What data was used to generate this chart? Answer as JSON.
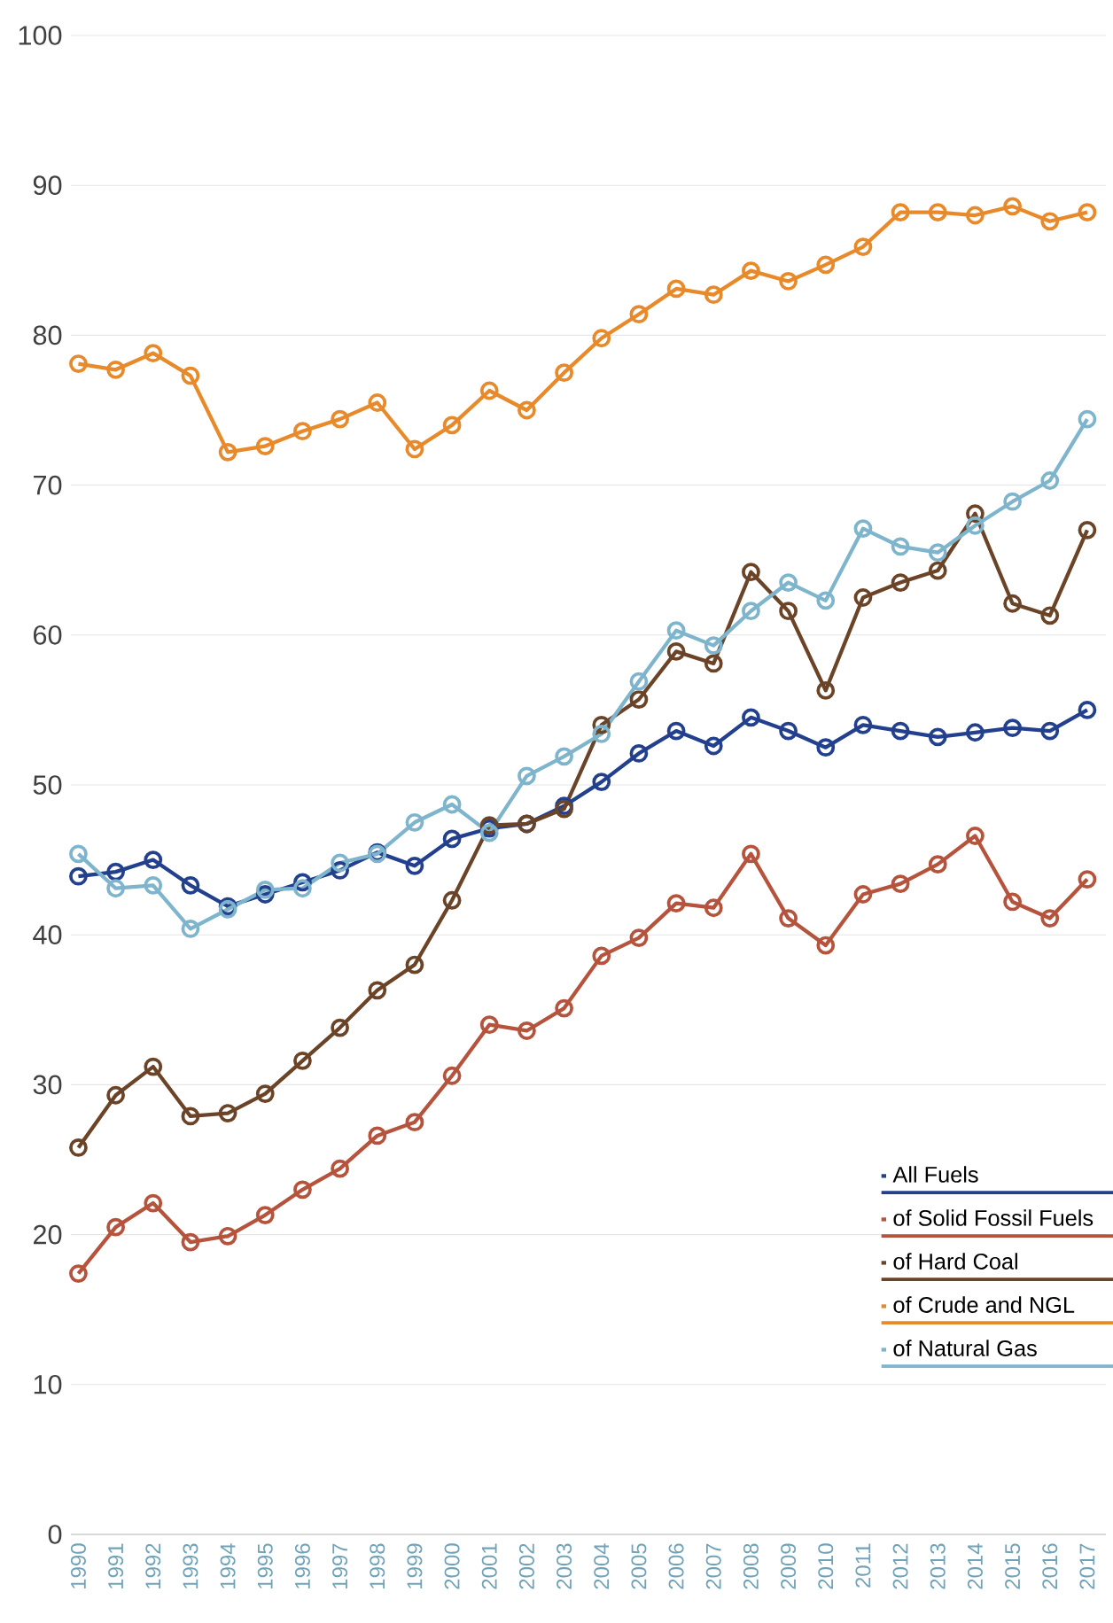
{
  "chart_data": {
    "type": "line",
    "x": [
      1990,
      1991,
      1992,
      1993,
      1994,
      1995,
      1996,
      1997,
      1998,
      1999,
      2000,
      2001,
      2002,
      2003,
      2004,
      2005,
      2006,
      2007,
      2008,
      2009,
      2010,
      2011,
      2012,
      2013,
      2014,
      2015,
      2016,
      2017
    ],
    "series": [
      {
        "name": "All Fuels",
        "color": "#23408e",
        "values": [
          43.9,
          44.2,
          45.0,
          43.3,
          41.9,
          42.7,
          43.5,
          44.3,
          45.5,
          44.6,
          46.4,
          47.1,
          47.4,
          48.6,
          50.2,
          52.1,
          53.6,
          52.6,
          54.5,
          53.6,
          52.5,
          54.0,
          53.6,
          53.2,
          53.5,
          53.8,
          53.6,
          55.0
        ]
      },
      {
        "name": "of Solid Fossil Fuels",
        "color": "#b5533c",
        "values": [
          17.4,
          20.5,
          22.1,
          19.5,
          19.9,
          21.3,
          23.0,
          24.4,
          26.6,
          27.5,
          30.6,
          34.0,
          33.6,
          35.1,
          38.6,
          39.8,
          42.1,
          41.8,
          45.4,
          41.1,
          39.3,
          42.7,
          43.4,
          44.7,
          46.6,
          42.2,
          41.1,
          43.7
        ]
      },
      {
        "name": "of Hard Coal",
        "color": "#6b4428",
        "values": [
          25.8,
          29.3,
          31.2,
          27.9,
          28.1,
          29.4,
          31.6,
          33.8,
          36.3,
          38.0,
          42.3,
          47.3,
          47.4,
          48.4,
          54.0,
          55.7,
          58.9,
          58.1,
          64.2,
          61.6,
          56.3,
          62.5,
          63.5,
          64.3,
          68.1,
          62.1,
          61.3,
          67.0
        ]
      },
      {
        "name": "of Crude and NGL",
        "color": "#e8892a",
        "values": [
          78.1,
          77.7,
          78.8,
          77.3,
          72.2,
          72.6,
          73.6,
          74.4,
          75.5,
          72.4,
          74.0,
          76.3,
          75.0,
          77.5,
          79.8,
          81.4,
          83.1,
          82.7,
          84.3,
          83.6,
          84.7,
          85.9,
          88.2,
          88.2,
          88.0,
          88.6,
          87.6,
          88.2
        ]
      },
      {
        "name": "of Natural Gas",
        "color": "#7fb5cc",
        "values": [
          45.4,
          43.1,
          43.3,
          40.4,
          41.7,
          43.0,
          43.1,
          44.8,
          45.4,
          47.5,
          48.7,
          46.8,
          50.6,
          51.9,
          53.4,
          56.9,
          60.3,
          59.3,
          61.6,
          63.5,
          62.3,
          67.1,
          65.9,
          65.5,
          67.3,
          68.9,
          70.3,
          74.4
        ]
      }
    ],
    "xlim": [
      1989.8,
      2017.5
    ],
    "xticks": [
      1990,
      1991,
      1992,
      1993,
      1994,
      1995,
      1996,
      1997,
      1998,
      1999,
      2000,
      2001,
      2002,
      2003,
      2004,
      2005,
      2006,
      2007,
      2008,
      2009,
      2010,
      2011,
      2012,
      2013,
      2014,
      2015,
      2016,
      2017
    ],
    "ylim": [
      0,
      100
    ],
    "yticks": [
      0,
      10,
      20,
      30,
      40,
      50,
      60,
      70,
      80,
      90,
      100
    ],
    "grid": "y",
    "legend": "bottom right",
    "marker": "circle",
    "line_style": "solid"
  }
}
